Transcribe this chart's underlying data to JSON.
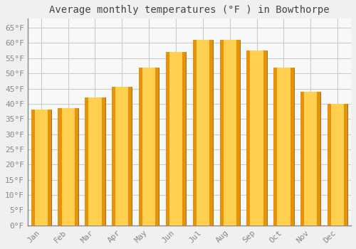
{
  "title": "Average monthly temperatures (°F ) in Bowthorpe",
  "months": [
    "Jan",
    "Feb",
    "Mar",
    "Apr",
    "May",
    "Jun",
    "Jul",
    "Aug",
    "Sep",
    "Oct",
    "Nov",
    "Dec"
  ],
  "values": [
    38,
    38.5,
    42,
    45.5,
    52,
    57,
    61,
    61,
    57.5,
    52,
    44,
    40
  ],
  "bar_color_edge": "#E8920A",
  "bar_color_center": "#FFD050",
  "bar_color_main": "#F5AA1E",
  "bar_edge_color": "#A07010",
  "background_color": "#F0F0F0",
  "plot_bg_color": "#F8F8F8",
  "grid_color": "#CCCCCC",
  "text_color": "#888888",
  "title_color": "#444444",
  "spine_color": "#888888",
  "ylim": [
    0,
    68
  ],
  "yticks": [
    0,
    5,
    10,
    15,
    20,
    25,
    30,
    35,
    40,
    45,
    50,
    55,
    60,
    65
  ],
  "title_fontsize": 10,
  "tick_fontsize": 8,
  "font_family": "monospace",
  "bar_width": 0.75
}
